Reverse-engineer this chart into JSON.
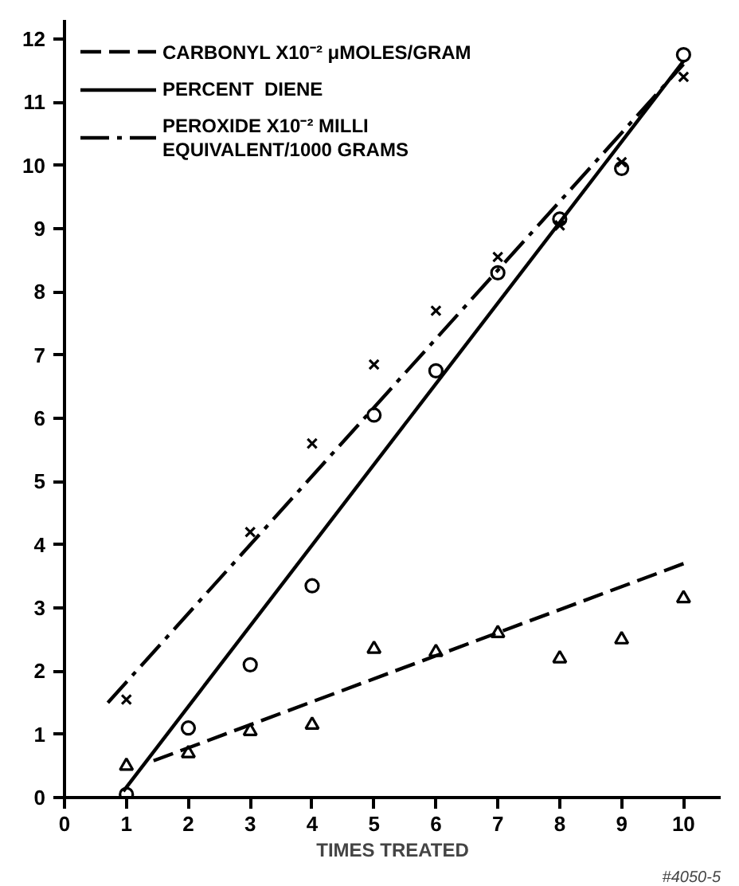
{
  "chart_data": {
    "type": "scatter",
    "xlabel": "TIMES TREATED",
    "annotations": [
      "#4050-5"
    ],
    "xlim": [
      0,
      10.6
    ],
    "ylim": [
      0,
      12.3
    ],
    "xticks": [
      0,
      1,
      2,
      3,
      4,
      5,
      6,
      7,
      8,
      9,
      10
    ],
    "yticks": [
      0,
      1,
      2,
      3,
      4,
      5,
      6,
      7,
      8,
      9,
      10,
      11,
      12
    ],
    "grid": false,
    "legend": "top left",
    "series": [
      {
        "type": "line",
        "name": "CARBONYL X10⁻² μMOLES/GRAM",
        "color": "#000000",
        "line_style": "dashed",
        "x": [
          10,
          1.35
        ],
        "values": [
          3.7,
          0.55
        ]
      },
      {
        "type": "line",
        "name": "PERCENT  DIENE",
        "color": "#000000",
        "line_style": "solid",
        "x": [
          0.95,
          10
        ],
        "values": [
          0.1,
          11.65
        ]
      },
      {
        "type": "line",
        "name": "PEROXIDE X10⁻² MILLI\nEQUIVALENT/1000 GRAMS",
        "color": "#000000",
        "line_style": "dashdot",
        "x": [
          0.7,
          10
        ],
        "values": [
          1.5,
          11.6
        ]
      },
      {
        "marker": "triangle",
        "color": "#000000",
        "x": [
          1,
          2,
          3,
          4,
          5,
          6,
          7,
          8,
          9,
          10
        ],
        "values": [
          0.5,
          0.7,
          1.05,
          1.15,
          2.35,
          2.3,
          2.6,
          2.2,
          2.5,
          3.15
        ]
      },
      {
        "marker": "circle",
        "color": "#000000",
        "x": [
          1,
          2,
          3,
          4,
          5,
          6,
          7,
          8,
          9,
          10
        ],
        "values": [
          0.05,
          1.1,
          2.1,
          3.35,
          6.05,
          6.75,
          8.3,
          9.15,
          9.95,
          11.75
        ]
      },
      {
        "marker": "cross",
        "color": "#000000",
        "x": [
          1,
          3,
          4,
          5,
          6,
          7,
          8,
          9,
          10
        ],
        "values": [
          1.55,
          4.2,
          5.6,
          6.85,
          7.7,
          8.55,
          9.05,
          10.05,
          11.4
        ]
      }
    ]
  }
}
